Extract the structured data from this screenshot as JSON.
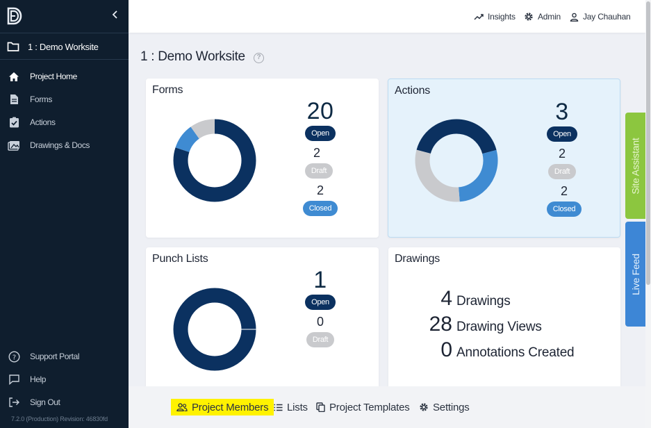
{
  "sidebar": {
    "project": "1 : Demo Worksite",
    "nav": [
      {
        "label": "Project Home",
        "icon": "home-icon"
      },
      {
        "label": "Forms",
        "icon": "document-icon"
      },
      {
        "label": "Actions",
        "icon": "clipboard-check-icon"
      },
      {
        "label": "Drawings & Docs",
        "icon": "images-icon"
      }
    ],
    "footer": [
      {
        "label": "Support Portal",
        "icon": "help-circle-icon"
      },
      {
        "label": "Help",
        "icon": "chat-icon"
      },
      {
        "label": "Sign Out",
        "icon": "sign-out-icon"
      }
    ],
    "version": "7.2.0 (Production) Revision: 46830fd"
  },
  "topbar": {
    "insights": "Insights",
    "admin": "Admin",
    "user": "Jay Chauhan"
  },
  "page_title": "1 : Demo Worksite",
  "cards": {
    "forms": {
      "title": "Forms",
      "open": "20",
      "open_label": "Open",
      "draft": "2",
      "draft_label": "Draft",
      "closed": "2",
      "closed_label": "Closed"
    },
    "actions": {
      "title": "Actions",
      "open": "3",
      "open_label": "Open",
      "draft": "2",
      "draft_label": "Draft",
      "closed": "2",
      "closed_label": "Closed"
    },
    "punch": {
      "title": "Punch Lists",
      "open": "1",
      "open_label": "Open",
      "draft": "0",
      "draft_label": "Draft"
    },
    "drawings": {
      "title": "Drawings",
      "rows": [
        {
          "num": "4",
          "label": "Drawings"
        },
        {
          "num": "28",
          "label": "Drawing Views"
        },
        {
          "num": "0",
          "label": "Annotations Created"
        }
      ]
    }
  },
  "side_tabs": {
    "site_assistant": "Site Assistant",
    "live_feed": "Live Feed"
  },
  "bottom": {
    "members": "Project Members",
    "lists": "Lists",
    "templates": "Project Templates",
    "settings": "Settings"
  },
  "colors": {
    "open": "#0b3160",
    "draft": "#c9cacd",
    "closed": "#3f8bd2",
    "sidebar": "#0f1e2e",
    "highlight": "#fff200"
  }
}
